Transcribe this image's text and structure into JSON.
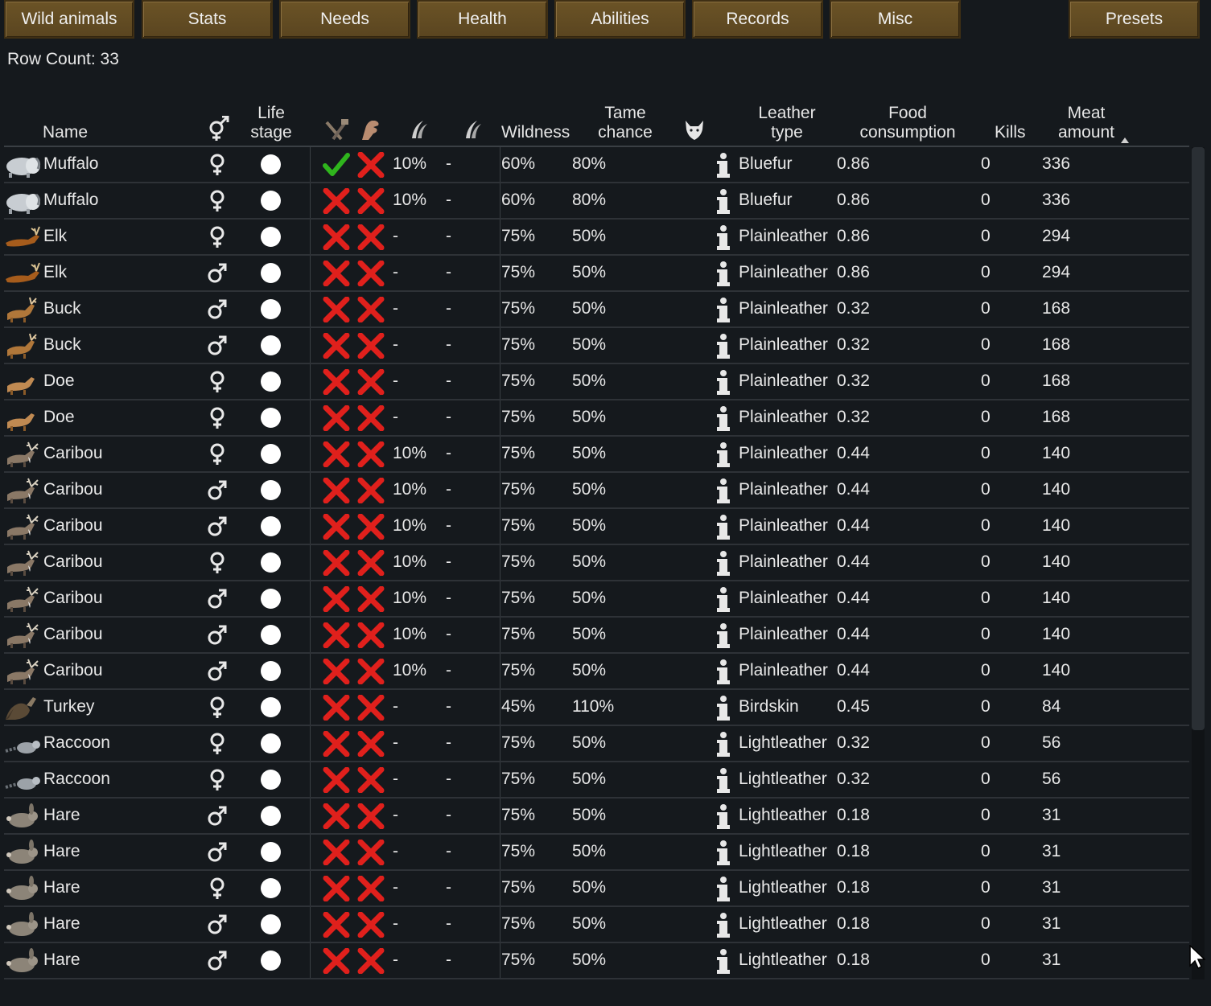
{
  "tabs": {
    "wild_animals": "Wild animals",
    "stats": "Stats",
    "needs": "Needs",
    "health": "Health",
    "abilities": "Abilities",
    "records": "Records",
    "misc": "Misc",
    "presets": "Presets"
  },
  "row_count": "Row Count: 33",
  "headers": {
    "name": "Name",
    "gender_icon": "gender-icon",
    "life_stage_1": "Life",
    "life_stage_2": "stage",
    "icon_1": "crossed-tools-icon",
    "icon_2": "hand-icon",
    "icon_3": "claw-icon",
    "icon_4": "claw-icon",
    "wildness": "Wildness",
    "tame_chance_1": "Tame",
    "tame_chance_2": "chance",
    "icon_5": "wolf-head-icon",
    "leather_type_1": "Leather",
    "leather_type_2": "type",
    "food_1": "Food",
    "food_2": "consumption",
    "kills": "Kills",
    "meat_1": "Meat",
    "meat_2": "amount"
  },
  "colors": {
    "tab_bg": "#5f4923",
    "background": "#15191d",
    "check_green": "#2fb51d",
    "cross_red": "#e0201c"
  },
  "rows": [
    {
      "icon": "muffalo-icon",
      "name": "Muffalo",
      "sex": "female",
      "life_stage": "adult",
      "col1": "check",
      "col2": "cross",
      "v1": "10%",
      "v2": "-",
      "wildness": "60%",
      "tame_chance": "80%",
      "leather": "Bluefur",
      "food": "0.86",
      "kills": "0",
      "meat": "336"
    },
    {
      "icon": "muffalo-icon",
      "name": "Muffalo",
      "sex": "female",
      "life_stage": "adult",
      "col1": "cross",
      "col2": "cross",
      "v1": "10%",
      "v2": "-",
      "wildness": "60%",
      "tame_chance": "80%",
      "leather": "Bluefur",
      "food": "0.86",
      "kills": "0",
      "meat": "336"
    },
    {
      "icon": "elk-icon",
      "name": "Elk",
      "sex": "female",
      "life_stage": "adult",
      "col1": "cross",
      "col2": "cross",
      "v1": "-",
      "v2": "-",
      "wildness": "75%",
      "tame_chance": "50%",
      "leather": "Plainleather",
      "food": "0.86",
      "kills": "0",
      "meat": "294"
    },
    {
      "icon": "elk-icon",
      "name": "Elk",
      "sex": "male",
      "life_stage": "adult",
      "col1": "cross",
      "col2": "cross",
      "v1": "-",
      "v2": "-",
      "wildness": "75%",
      "tame_chance": "50%",
      "leather": "Plainleather",
      "food": "0.86",
      "kills": "0",
      "meat": "294"
    },
    {
      "icon": "deer-icon",
      "name": "Buck",
      "sex": "male",
      "life_stage": "adult",
      "col1": "cross",
      "col2": "cross",
      "v1": "-",
      "v2": "-",
      "wildness": "75%",
      "tame_chance": "50%",
      "leather": "Plainleather",
      "food": "0.32",
      "kills": "0",
      "meat": "168"
    },
    {
      "icon": "deer-icon",
      "name": "Buck",
      "sex": "male",
      "life_stage": "adult",
      "col1": "cross",
      "col2": "cross",
      "v1": "-",
      "v2": "-",
      "wildness": "75%",
      "tame_chance": "50%",
      "leather": "Plainleather",
      "food": "0.32",
      "kills": "0",
      "meat": "168"
    },
    {
      "icon": "doe-icon",
      "name": "Doe",
      "sex": "female",
      "life_stage": "adult",
      "col1": "cross",
      "col2": "cross",
      "v1": "-",
      "v2": "-",
      "wildness": "75%",
      "tame_chance": "50%",
      "leather": "Plainleather",
      "food": "0.32",
      "kills": "0",
      "meat": "168"
    },
    {
      "icon": "doe-icon",
      "name": "Doe",
      "sex": "female",
      "life_stage": "adult",
      "col1": "cross",
      "col2": "cross",
      "v1": "-",
      "v2": "-",
      "wildness": "75%",
      "tame_chance": "50%",
      "leather": "Plainleather",
      "food": "0.32",
      "kills": "0",
      "meat": "168"
    },
    {
      "icon": "caribou-icon",
      "name": "Caribou",
      "sex": "female",
      "life_stage": "adult",
      "col1": "cross",
      "col2": "cross",
      "v1": "10%",
      "v2": "-",
      "wildness": "75%",
      "tame_chance": "50%",
      "leather": "Plainleather",
      "food": "0.44",
      "kills": "0",
      "meat": "140"
    },
    {
      "icon": "caribou-icon",
      "name": "Caribou",
      "sex": "male",
      "life_stage": "adult",
      "col1": "cross",
      "col2": "cross",
      "v1": "10%",
      "v2": "-",
      "wildness": "75%",
      "tame_chance": "50%",
      "leather": "Plainleather",
      "food": "0.44",
      "kills": "0",
      "meat": "140"
    },
    {
      "icon": "caribou-icon",
      "name": "Caribou",
      "sex": "male",
      "life_stage": "adult",
      "col1": "cross",
      "col2": "cross",
      "v1": "10%",
      "v2": "-",
      "wildness": "75%",
      "tame_chance": "50%",
      "leather": "Plainleather",
      "food": "0.44",
      "kills": "0",
      "meat": "140"
    },
    {
      "icon": "caribou-icon",
      "name": "Caribou",
      "sex": "female",
      "life_stage": "adult",
      "col1": "cross",
      "col2": "cross",
      "v1": "10%",
      "v2": "-",
      "wildness": "75%",
      "tame_chance": "50%",
      "leather": "Plainleather",
      "food": "0.44",
      "kills": "0",
      "meat": "140"
    },
    {
      "icon": "caribou-icon",
      "name": "Caribou",
      "sex": "male",
      "life_stage": "adult",
      "col1": "cross",
      "col2": "cross",
      "v1": "10%",
      "v2": "-",
      "wildness": "75%",
      "tame_chance": "50%",
      "leather": "Plainleather",
      "food": "0.44",
      "kills": "0",
      "meat": "140"
    },
    {
      "icon": "caribou-icon",
      "name": "Caribou",
      "sex": "male",
      "life_stage": "adult",
      "col1": "cross",
      "col2": "cross",
      "v1": "10%",
      "v2": "-",
      "wildness": "75%",
      "tame_chance": "50%",
      "leather": "Plainleather",
      "food": "0.44",
      "kills": "0",
      "meat": "140"
    },
    {
      "icon": "caribou-icon",
      "name": "Caribou",
      "sex": "male",
      "life_stage": "adult",
      "col1": "cross",
      "col2": "cross",
      "v1": "10%",
      "v2": "-",
      "wildness": "75%",
      "tame_chance": "50%",
      "leather": "Plainleather",
      "food": "0.44",
      "kills": "0",
      "meat": "140"
    },
    {
      "icon": "turkey-icon",
      "name": "Turkey",
      "sex": "female",
      "life_stage": "adult",
      "col1": "cross",
      "col2": "cross",
      "v1": "-",
      "v2": "-",
      "wildness": "45%",
      "tame_chance": "110%",
      "leather": "Birdskin",
      "food": "0.45",
      "kills": "0",
      "meat": "84"
    },
    {
      "icon": "raccoon-icon",
      "name": "Raccoon",
      "sex": "female",
      "life_stage": "adult",
      "col1": "cross",
      "col2": "cross",
      "v1": "-",
      "v2": "-",
      "wildness": "75%",
      "tame_chance": "50%",
      "leather": "Lightleather",
      "food": "0.32",
      "kills": "0",
      "meat": "56"
    },
    {
      "icon": "raccoon-icon",
      "name": "Raccoon",
      "sex": "female",
      "life_stage": "adult",
      "col1": "cross",
      "col2": "cross",
      "v1": "-",
      "v2": "-",
      "wildness": "75%",
      "tame_chance": "50%",
      "leather": "Lightleather",
      "food": "0.32",
      "kills": "0",
      "meat": "56"
    },
    {
      "icon": "hare-icon",
      "name": "Hare",
      "sex": "male",
      "life_stage": "adult",
      "col1": "cross",
      "col2": "cross",
      "v1": "-",
      "v2": "-",
      "wildness": "75%",
      "tame_chance": "50%",
      "leather": "Lightleather",
      "food": "0.18",
      "kills": "0",
      "meat": "31"
    },
    {
      "icon": "hare-icon",
      "name": "Hare",
      "sex": "male",
      "life_stage": "adult",
      "col1": "cross",
      "col2": "cross",
      "v1": "-",
      "v2": "-",
      "wildness": "75%",
      "tame_chance": "50%",
      "leather": "Lightleather",
      "food": "0.18",
      "kills": "0",
      "meat": "31"
    },
    {
      "icon": "hare-icon",
      "name": "Hare",
      "sex": "female",
      "life_stage": "adult",
      "col1": "cross",
      "col2": "cross",
      "v1": "-",
      "v2": "-",
      "wildness": "75%",
      "tame_chance": "50%",
      "leather": "Lightleather",
      "food": "0.18",
      "kills": "0",
      "meat": "31"
    },
    {
      "icon": "hare-icon",
      "name": "Hare",
      "sex": "male",
      "life_stage": "adult",
      "col1": "cross",
      "col2": "cross",
      "v1": "-",
      "v2": "-",
      "wildness": "75%",
      "tame_chance": "50%",
      "leather": "Lightleather",
      "food": "0.18",
      "kills": "0",
      "meat": "31"
    },
    {
      "icon": "hare-icon",
      "name": "Hare",
      "sex": "male",
      "life_stage": "adult",
      "col1": "cross",
      "col2": "cross",
      "v1": "-",
      "v2": "-",
      "wildness": "75%",
      "tame_chance": "50%",
      "leather": "Lightleather",
      "food": "0.18",
      "kills": "0",
      "meat": "31"
    }
  ]
}
